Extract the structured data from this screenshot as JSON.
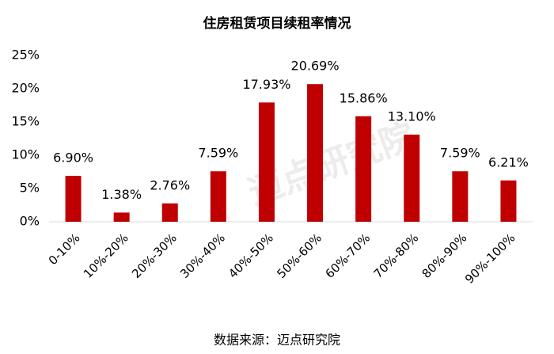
{
  "chart_data": {
    "type": "bar",
    "title": "住房租赁项目续租率情况",
    "categories": [
      "0-10%",
      "10%-20%",
      "20%-30%",
      "30%-40%",
      "40%-50%",
      "50%-60%",
      "60%-70%",
      "70%-80%",
      "80%-90%",
      "90%-100%"
    ],
    "values": [
      6.9,
      1.38,
      2.76,
      7.59,
      17.93,
      20.69,
      15.86,
      13.1,
      7.59,
      6.21
    ],
    "value_labels": [
      "6.90%",
      "1.38%",
      "2.76%",
      "7.59%",
      "17.93%",
      "20.69%",
      "15.86%",
      "13.10%",
      "7.59%",
      "6.21%"
    ],
    "color": "#c00000",
    "ylim": [
      0,
      25
    ],
    "yticks": [
      {
        "value": 0,
        "label": "0%"
      },
      {
        "value": 5,
        "label": "5%"
      },
      {
        "value": 10,
        "label": "10%"
      },
      {
        "value": 15,
        "label": "15%"
      },
      {
        "value": 20,
        "label": "20%"
      },
      {
        "value": 25,
        "label": "25%"
      }
    ],
    "grid": false,
    "source": "数据来源：迈点研究院",
    "watermark": "迈点研究院"
  }
}
